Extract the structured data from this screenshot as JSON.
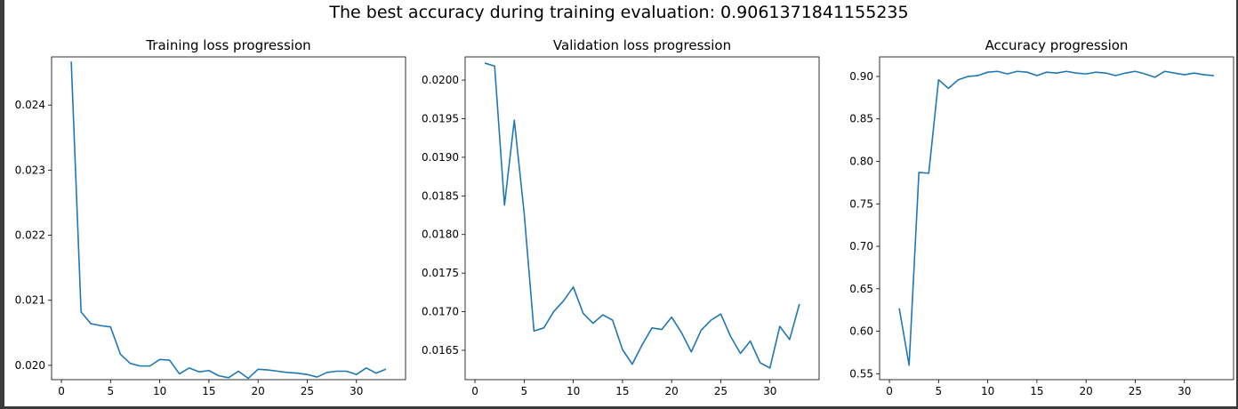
{
  "figure": {
    "suptitle": "The best accuracy during training evaluation: 0.9061371841155235"
  },
  "colors": {
    "line": "#1f77b4",
    "axis": "#000000",
    "frame_dark": "#3a3a3a"
  },
  "chart_data": [
    {
      "type": "line",
      "title": "Training loss progression",
      "xlabel": "",
      "ylabel": "",
      "grid": false,
      "xlim": [
        -1.0,
        35.0
      ],
      "ylim": [
        0.01978,
        0.02474
      ],
      "xticks": [
        0,
        5,
        10,
        15,
        20,
        25,
        30
      ],
      "yticks": [
        0.02,
        0.021,
        0.022,
        0.023,
        0.024
      ],
      "xtick_labels": [
        "0",
        "5",
        "10",
        "15",
        "20",
        "25",
        "30"
      ],
      "ytick_labels": [
        "0.020",
        "0.021",
        "0.022",
        "0.023",
        "0.024"
      ],
      "x": [
        1,
        2,
        3,
        4,
        5,
        6,
        7,
        8,
        9,
        10,
        11,
        12,
        13,
        14,
        15,
        16,
        17,
        18,
        19,
        20,
        21,
        22,
        23,
        24,
        25,
        26,
        27,
        28,
        29,
        30,
        31,
        32,
        33
      ],
      "y": [
        0.02467,
        0.02082,
        0.02064,
        0.02061,
        0.02059,
        0.02017,
        0.02003,
        0.01999,
        0.01999,
        0.02009,
        0.02008,
        0.01987,
        0.01996,
        0.0199,
        0.01992,
        0.01984,
        0.01981,
        0.01991,
        0.0198,
        0.01994,
        0.01993,
        0.01991,
        0.01989,
        0.01988,
        0.01986,
        0.01982,
        0.01989,
        0.01991,
        0.01991,
        0.01986,
        0.01996,
        0.01988,
        0.01994
      ]
    },
    {
      "type": "line",
      "title": "Validation loss progression",
      "xlabel": "",
      "ylabel": "",
      "grid": false,
      "xlim": [
        -1.0,
        35.0
      ],
      "ylim": [
        0.01612,
        0.0203
      ],
      "xticks": [
        0,
        5,
        10,
        15,
        20,
        25,
        30
      ],
      "yticks": [
        0.0165,
        0.017,
        0.0175,
        0.018,
        0.0185,
        0.019,
        0.0195,
        0.02
      ],
      "xtick_labels": [
        "0",
        "5",
        "10",
        "15",
        "20",
        "25",
        "30"
      ],
      "ytick_labels": [
        "0.0165",
        "0.0170",
        "0.0175",
        "0.0180",
        "0.0185",
        "0.0190",
        "0.0195",
        "0.0200"
      ],
      "x": [
        1,
        2,
        3,
        4,
        5,
        6,
        7,
        8,
        9,
        10,
        11,
        12,
        13,
        14,
        15,
        16,
        17,
        18,
        19,
        20,
        21,
        22,
        23,
        24,
        25,
        26,
        27,
        28,
        29,
        30,
        31,
        32,
        33
      ],
      "y": [
        0.02022,
        0.02018,
        0.01838,
        0.01948,
        0.01828,
        0.01675,
        0.01679,
        0.017,
        0.01714,
        0.01732,
        0.01698,
        0.01685,
        0.01696,
        0.01689,
        0.01651,
        0.01632,
        0.01657,
        0.01679,
        0.01677,
        0.01693,
        0.01673,
        0.01648,
        0.01676,
        0.01689,
        0.01697,
        0.01668,
        0.01646,
        0.01662,
        0.01634,
        0.01627,
        0.01681,
        0.01664,
        0.0171
      ]
    },
    {
      "type": "line",
      "title": "Accuracy progression",
      "xlabel": "",
      "ylabel": "",
      "grid": false,
      "xlim": [
        -1.0,
        35.0
      ],
      "ylim": [
        0.543,
        0.923
      ],
      "xticks": [
        0,
        5,
        10,
        15,
        20,
        25,
        30
      ],
      "yticks": [
        0.55,
        0.6,
        0.65,
        0.7,
        0.75,
        0.8,
        0.85,
        0.9
      ],
      "xtick_labels": [
        "0",
        "5",
        "10",
        "15",
        "20",
        "25",
        "30"
      ],
      "ytick_labels": [
        "0.55",
        "0.60",
        "0.65",
        "0.70",
        "0.75",
        "0.80",
        "0.85",
        "0.90"
      ],
      "x": [
        1,
        2,
        3,
        4,
        5,
        6,
        7,
        8,
        9,
        10,
        11,
        12,
        13,
        14,
        15,
        16,
        17,
        18,
        19,
        20,
        21,
        22,
        23,
        24,
        25,
        26,
        27,
        28,
        29,
        30,
        31,
        32,
        33
      ],
      "y": [
        0.627,
        0.56,
        0.787,
        0.786,
        0.896,
        0.886,
        0.896,
        0.9,
        0.901,
        0.905,
        0.906,
        0.903,
        0.906,
        0.905,
        0.901,
        0.905,
        0.904,
        0.906,
        0.904,
        0.903,
        0.905,
        0.904,
        0.901,
        0.904,
        0.906,
        0.903,
        0.899,
        0.906,
        0.904,
        0.902,
        0.904,
        0.902,
        0.901
      ]
    }
  ]
}
